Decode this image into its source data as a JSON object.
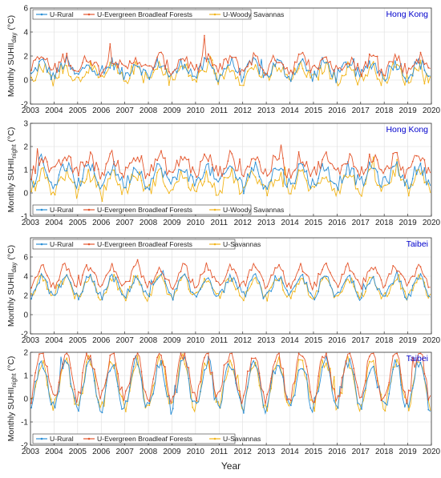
{
  "figure": {
    "xlabel": "Year"
  },
  "colors": {
    "rural": "#2b8fd6",
    "forest": "#e4572e",
    "savanna": "#f2b51a",
    "station": "#0000cc"
  },
  "chart_data": [
    {
      "type": "line",
      "station": "Hong Kong",
      "ylabel_main": "Monthly SUHII",
      "ylabel_sub": "day",
      "ylabel_unit": " (°C)",
      "xlim": [
        2003,
        2020
      ],
      "ylim": [
        -2,
        6
      ],
      "yticks": [
        -2,
        0,
        2,
        4,
        6
      ],
      "xticks": [
        2003,
        2004,
        2005,
        2006,
        2007,
        2008,
        2009,
        2010,
        2011,
        2012,
        2013,
        2014,
        2015,
        2016,
        2017,
        2018,
        2019,
        2020
      ],
      "grid": true,
      "legend_placement": "top-left",
      "series_style": {
        "base": 0.9,
        "amp": 0.55,
        "noise": 0.55,
        "offsets": [
          0,
          0.45,
          -0.35
        ]
      },
      "series": [
        {
          "name": "U-Rural",
          "color_key": "rural"
        },
        {
          "name": "U-Evergreen Broadleaf Forests",
          "color_key": "forest"
        },
        {
          "name": "U-Woody Savannas",
          "color_key": "savanna"
        }
      ]
    },
    {
      "type": "line",
      "station": "Hong Kong",
      "ylabel_main": "Monthly SUHII",
      "ylabel_sub": "night",
      "ylabel_unit": " (°C)",
      "xlim": [
        2003,
        2020
      ],
      "ylim": [
        -1,
        3
      ],
      "yticks": [
        -1,
        0,
        1,
        2,
        3
      ],
      "xticks": [
        2003,
        2004,
        2005,
        2006,
        2007,
        2008,
        2009,
        2010,
        2011,
        2012,
        2013,
        2014,
        2015,
        2016,
        2017,
        2018,
        2019,
        2020
      ],
      "grid": true,
      "legend_placement": "bottom-left",
      "series_style": {
        "base": 0.75,
        "amp": 0.35,
        "noise": 0.3,
        "offsets": [
          0,
          0.45,
          -0.3
        ]
      },
      "series": [
        {
          "name": "U-Rural",
          "color_key": "rural"
        },
        {
          "name": "U-Evergreen Broadleaf Forests",
          "color_key": "forest"
        },
        {
          "name": "U-Woody Savannas",
          "color_key": "savanna"
        }
      ]
    },
    {
      "type": "line",
      "station": "Taibei",
      "ylabel_main": "Monthly SUHII",
      "ylabel_sub": "day",
      "ylabel_unit": " (°C)",
      "xlim": [
        2003,
        2020
      ],
      "ylim": [
        -2,
        8
      ],
      "yticks": [
        -2,
        0,
        2,
        4,
        6
      ],
      "xticks": [
        2003,
        2004,
        2005,
        2006,
        2007,
        2008,
        2009,
        2010,
        2011,
        2012,
        2013,
        2014,
        2015,
        2016,
        2017,
        2018,
        2019,
        2020
      ],
      "grid": true,
      "legend_placement": "top-left",
      "series_style": {
        "base": 2.9,
        "amp": 1.0,
        "noise": 0.45,
        "offsets": [
          0,
          1.1,
          -0.1
        ]
      },
      "series": [
        {
          "name": "U-Rural",
          "color_key": "rural"
        },
        {
          "name": "U-Evergreen Broadleaf Forests",
          "color_key": "forest"
        },
        {
          "name": "U-Savannas",
          "color_key": "savanna"
        }
      ]
    },
    {
      "type": "line",
      "station": "Taibei",
      "ylabel_main": "Monthly SUHII",
      "ylabel_sub": "night",
      "ylabel_unit": " (°C)",
      "xlim": [
        2003,
        2020
      ],
      "ylim": [
        -2,
        2
      ],
      "yticks": [
        -2,
        -1,
        0,
        1,
        2
      ],
      "xticks": [
        2003,
        2004,
        2005,
        2006,
        2007,
        2008,
        2009,
        2010,
        2011,
        2012,
        2013,
        2014,
        2015,
        2016,
        2017,
        2018,
        2019,
        2020
      ],
      "grid": true,
      "legend_placement": "bottom-left",
      "series_style": {
        "base": 0.6,
        "amp": 1.0,
        "noise": 0.3,
        "offsets": [
          0,
          0.4,
          0.05
        ]
      },
      "series": [
        {
          "name": "U-Rural",
          "color_key": "rural"
        },
        {
          "name": "U-Evergreen Broadleaf Forests",
          "color_key": "forest"
        },
        {
          "name": "U-Savannas",
          "color_key": "savanna"
        }
      ]
    }
  ]
}
